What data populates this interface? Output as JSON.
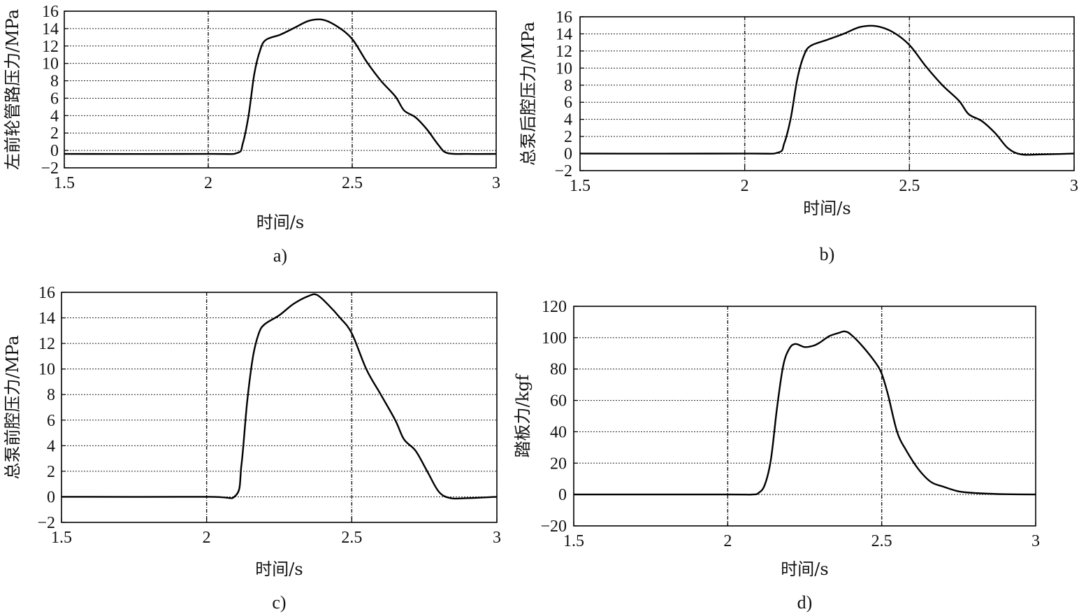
{
  "chart_data": [
    {
      "type": "line",
      "panel": "a",
      "caption": "a)",
      "xlabel": "时间/s",
      "ylabel": "左前轮管路压力/MPa",
      "xlim": [
        1.5,
        3
      ],
      "ylim": [
        -2,
        16
      ],
      "xticks": [
        1.5,
        2,
        2.5,
        3
      ],
      "xtick_labels": [
        "1.5",
        "2",
        "2.5",
        "3"
      ],
      "yticks": [
        -2,
        0,
        2,
        4,
        6,
        8,
        10,
        12,
        14,
        16
      ],
      "ytick_labels": [
        "−2",
        "0",
        "2",
        "4",
        "6",
        "8",
        "10",
        "12",
        "14",
        "16"
      ],
      "grid": true,
      "x": [
        1.5,
        2.0,
        2.1,
        2.12,
        2.14,
        2.16,
        2.18,
        2.2,
        2.25,
        2.3,
        2.35,
        2.4,
        2.45,
        2.5,
        2.55,
        2.6,
        2.65,
        2.68,
        2.72,
        2.76,
        2.8,
        2.83,
        2.9,
        3.0
      ],
      "y": [
        -0.4,
        -0.4,
        -0.3,
        0.8,
        4.0,
        8.8,
        11.5,
        12.7,
        13.3,
        14.1,
        14.9,
        15.0,
        14.2,
        12.8,
        10.2,
        8.0,
        6.2,
        4.6,
        3.8,
        2.4,
        0.6,
        -0.3,
        -0.4,
        -0.4
      ]
    },
    {
      "type": "line",
      "panel": "b",
      "caption": "b)",
      "xlabel": "时间/s",
      "ylabel": "总泵后腔压力/MPa",
      "xlim": [
        1.5,
        3
      ],
      "ylim": [
        -2,
        16
      ],
      "xticks": [
        1.5,
        2,
        2.5,
        3
      ],
      "xtick_labels": [
        "1.5",
        "2",
        "2.5",
        "3"
      ],
      "yticks": [
        -2,
        0,
        2,
        4,
        6,
        8,
        10,
        12,
        14,
        16
      ],
      "ytick_labels": [
        "−2",
        "0",
        "2",
        "4",
        "6",
        "8",
        "10",
        "12",
        "14",
        "16"
      ],
      "grid": true,
      "x": [
        1.5,
        2.0,
        2.1,
        2.12,
        2.14,
        2.16,
        2.18,
        2.2,
        2.25,
        2.3,
        2.35,
        2.4,
        2.45,
        2.5,
        2.55,
        2.6,
        2.65,
        2.68,
        2.72,
        2.76,
        2.8,
        2.84,
        2.9,
        3.0
      ],
      "y": [
        0.0,
        0.0,
        0.1,
        1.2,
        4.2,
        8.8,
        11.5,
        12.6,
        13.3,
        14.0,
        14.8,
        14.9,
        14.2,
        12.7,
        10.2,
        8.0,
        6.2,
        4.6,
        3.8,
        2.4,
        0.6,
        -0.1,
        -0.1,
        0.0
      ]
    },
    {
      "type": "line",
      "panel": "c",
      "caption": "c)",
      "xlabel": "时间/s",
      "ylabel": "总泵前腔压力/MPa",
      "xlim": [
        1.5,
        3
      ],
      "ylim": [
        -2,
        16
      ],
      "xticks": [
        1.5,
        2,
        2.5,
        3
      ],
      "xtick_labels": [
        "1.5",
        "2",
        "2.5",
        "3"
      ],
      "yticks": [
        -2,
        0,
        2,
        4,
        6,
        8,
        10,
        12,
        14,
        16
      ],
      "ytick_labels": [
        "−2",
        "0",
        "2",
        "4",
        "6",
        "8",
        "10",
        "12",
        "14",
        "16"
      ],
      "grid": true,
      "x": [
        1.5,
        2.0,
        2.1,
        2.12,
        2.14,
        2.16,
        2.18,
        2.2,
        2.25,
        2.3,
        2.35,
        2.38,
        2.42,
        2.46,
        2.5,
        2.55,
        2.6,
        2.65,
        2.68,
        2.72,
        2.76,
        2.8,
        2.84,
        2.9,
        3.0
      ],
      "y": [
        0.0,
        0.0,
        0.1,
        2.5,
        7.5,
        11.0,
        12.8,
        13.5,
        14.2,
        15.1,
        15.7,
        15.8,
        15.0,
        14.0,
        12.8,
        10.0,
        8.0,
        6.0,
        4.5,
        3.6,
        2.0,
        0.4,
        -0.1,
        -0.1,
        0.0
      ]
    },
    {
      "type": "line",
      "panel": "d",
      "caption": "d)",
      "xlabel": "时间/s",
      "ylabel": "踏板力/kgf",
      "xlim": [
        1.5,
        3
      ],
      "ylim": [
        -20,
        120
      ],
      "xticks": [
        1.5,
        2,
        2.5,
        3
      ],
      "xtick_labels": [
        "1.5",
        "2",
        "2.5",
        "3"
      ],
      "yticks": [
        -20,
        0,
        20,
        40,
        60,
        80,
        100,
        120
      ],
      "ytick_labels": [
        "−20",
        "0",
        "20",
        "40",
        "60",
        "80",
        "100",
        "120"
      ],
      "grid": true,
      "x": [
        1.5,
        2.0,
        2.08,
        2.1,
        2.12,
        2.14,
        2.16,
        2.18,
        2.2,
        2.22,
        2.25,
        2.28,
        2.3,
        2.33,
        2.36,
        2.38,
        2.4,
        2.44,
        2.48,
        2.5,
        2.52,
        2.55,
        2.58,
        2.62,
        2.66,
        2.7,
        2.75,
        2.8,
        2.85,
        2.9,
        3.0
      ],
      "y": [
        0.0,
        0.0,
        0.0,
        1.0,
        6.0,
        22.0,
        55.0,
        82.0,
        93.0,
        96.0,
        94.0,
        95.0,
        97.0,
        101.0,
        103.0,
        104.0,
        102.0,
        94.0,
        84.0,
        77.0,
        64.0,
        40.0,
        28.0,
        16.0,
        8.0,
        5.0,
        2.0,
        1.0,
        0.5,
        0.2,
        0.0
      ]
    }
  ]
}
